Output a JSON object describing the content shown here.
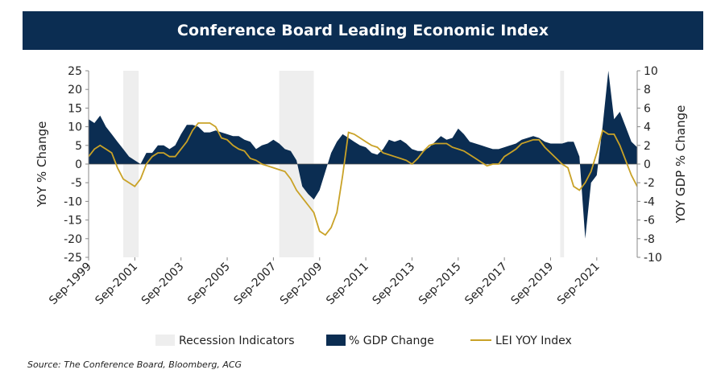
{
  "header": {
    "title": "Conference Board Leading Economic Index"
  },
  "source": "Source: The Conference Board, Bloomberg, ACG",
  "colors": {
    "header_bg": "#0b2d52",
    "gdp": "#0b2d52",
    "lei": "#c9a227",
    "recession": "#eeeeee"
  },
  "chart_data": {
    "type": "area",
    "x_tick_labels": [
      "Sep-1999",
      "Sep-2001",
      "Sep-2003",
      "Sep-2005",
      "Sep-2007",
      "Sep-2009",
      "Sep-2011",
      "Sep-2013",
      "Sep-2015",
      "Sep-2017",
      "Sep-2019",
      "Sep-2021"
    ],
    "x_range": [
      "Sep-1999",
      "Jun-2023"
    ],
    "y_left": {
      "label": "YoY % Change",
      "ticks": [
        25,
        20,
        15,
        10,
        5,
        0,
        -5,
        -10,
        -15,
        -20,
        -25
      ],
      "range": [
        -25,
        25
      ]
    },
    "y_right": {
      "label": "YOY GDP % Change",
      "ticks": [
        10,
        8,
        6,
        4,
        2,
        0,
        -2,
        -4,
        -6,
        -8,
        -10
      ],
      "range": [
        -10,
        10
      ]
    },
    "legend": {
      "position": "bottom",
      "entries": [
        "Recession Indicators",
        "% GDP Change",
        "LEI YOY Index"
      ]
    },
    "recessions": [
      {
        "start": "Mar-2001",
        "end": "Nov-2001"
      },
      {
        "start": "Dec-2007",
        "end": "Jun-2009"
      },
      {
        "start": "Feb-2020",
        "end": "Apr-2020"
      }
    ],
    "series": [
      {
        "name": "% GDP Change",
        "kind": "area",
        "axis": "left",
        "start": "Sep-1999",
        "step_months": 3,
        "values": [
          12,
          11,
          13,
          10,
          8,
          6,
          4,
          2,
          1,
          0,
          3,
          3,
          5,
          5,
          4,
          5,
          8,
          10.5,
          10.5,
          10,
          8.5,
          8.5,
          9,
          8.5,
          8,
          7.5,
          7.5,
          6.5,
          6,
          4,
          5,
          5.5,
          6.5,
          5.5,
          4,
          3.5,
          1,
          -6,
          -8,
          -9.5,
          -7,
          -2,
          3,
          6,
          8,
          7,
          6,
          5,
          4.5,
          3,
          2.5,
          4,
          6.5,
          6,
          6.5,
          5.5,
          4,
          3.5,
          3.5,
          4.5,
          6,
          7.5,
          6.5,
          7,
          9.5,
          8,
          6,
          5.5,
          5,
          4.5,
          4,
          4,
          4.5,
          5,
          5.5,
          6.5,
          7,
          7.5,
          7,
          6,
          5.5,
          5.5,
          5.5,
          6,
          6,
          2,
          -20,
          -5,
          -3,
          10,
          25,
          12,
          14,
          10,
          6,
          4.5,
          5,
          2.5,
          4,
          6
        ]
      },
      {
        "name": "LEI YOY Index",
        "kind": "line",
        "axis": "left",
        "start": "Sep-1999",
        "step_months": 3,
        "values": [
          2,
          4,
          5,
          4,
          3,
          -1,
          -4,
          -5,
          -6,
          -4,
          0,
          2,
          3,
          3,
          2,
          2,
          4,
          6,
          9,
          11,
          11,
          11,
          10,
          7,
          6.5,
          5,
          4,
          3.5,
          1.5,
          1,
          0,
          -0.5,
          -1,
          -1.5,
          -2,
          -4,
          -7,
          -9,
          -11,
          -13,
          -18,
          -19,
          -17,
          -13,
          -3,
          8.5,
          8,
          7,
          6,
          5,
          4.5,
          3,
          2.5,
          2,
          1.5,
          1,
          0,
          1.5,
          3.5,
          5,
          5.5,
          5.5,
          5.5,
          4.5,
          4,
          3.5,
          2.5,
          1.5,
          0.5,
          -0.5,
          0,
          0,
          2,
          3,
          4,
          5.5,
          6,
          6.5,
          6.5,
          4.5,
          3,
          1.5,
          0,
          -1,
          -6,
          -7,
          -5,
          -2,
          3,
          9,
          8,
          8,
          5,
          1,
          -3,
          -6,
          -8,
          -8,
          -7.5
        ]
      }
    ]
  }
}
